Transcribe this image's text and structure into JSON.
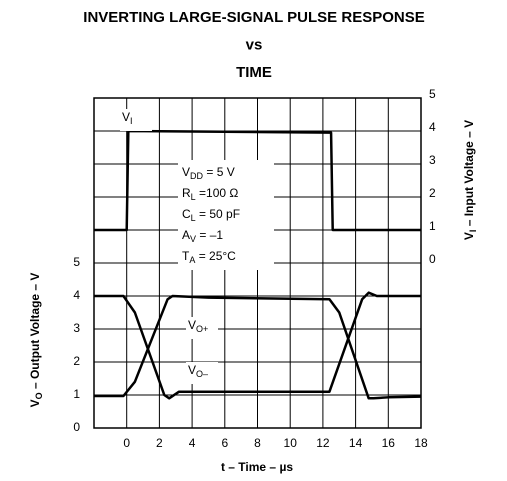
{
  "chart_data": {
    "type": "line",
    "title": [
      "INVERTING LARGE-SIGNAL PULSE RESPONSE",
      "vs",
      "TIME"
    ],
    "x_label": "t – Time – µs",
    "y_label": {
      "base": "V",
      "sub": "O",
      "rest": " – Output Voltage – V"
    },
    "y2_label": {
      "base": "V",
      "sub": "I",
      "rest": " – Input Voltage – V"
    },
    "xlim": [
      -2,
      18
    ],
    "xticks": [
      0,
      2,
      4,
      6,
      8,
      10,
      12,
      14,
      16,
      18
    ],
    "ylim": [
      0,
      10
    ],
    "yticks": [
      0,
      1,
      2,
      3,
      4,
      5
    ],
    "y2lim": [
      -5,
      5
    ],
    "y2ticks": [
      0,
      1,
      2,
      3,
      4,
      5
    ],
    "grid": true,
    "series": [
      {
        "label": {
          "base": "V",
          "sub": "I"
        },
        "axis": "y2",
        "color": "#000000",
        "x": [
          -2,
          0,
          0.1,
          12.5,
          12.6,
          18
        ],
        "values": [
          1,
          1,
          4,
          3.95,
          1,
          1
        ]
      },
      {
        "label": {
          "base": "V",
          "sub": "O+"
        },
        "color": "#000000",
        "x": [
          -2,
          -0.2,
          0.5,
          2.5,
          2.8,
          5,
          12.4,
          13,
          14.8,
          15.1,
          16,
          18
        ],
        "values": [
          0.97,
          0.97,
          1.4,
          3.9,
          4.0,
          3.95,
          3.9,
          3.5,
          0.9,
          0.9,
          0.93,
          0.95
        ]
      },
      {
        "label": {
          "base": "V",
          "sub": "O–"
        },
        "color": "#000000",
        "x": [
          -2,
          -0.2,
          0.5,
          2.3,
          2.6,
          3.2,
          12.4,
          14.4,
          14.8,
          15.3,
          18
        ],
        "values": [
          4,
          4,
          3.5,
          1.0,
          0.9,
          1.1,
          1.1,
          3.9,
          4.1,
          4.0,
          4.0
        ]
      }
    ],
    "conditions": [
      {
        "base": "V",
        "sub": "DD",
        "rest": " = 5 V"
      },
      {
        "base": "R",
        "sub": "L",
        "rest": " =100 Ω"
      },
      {
        "base": "C",
        "sub": "L",
        "rest": " = 50 pF"
      },
      {
        "base": "A",
        "sub": "V",
        "rest": " = –1"
      },
      {
        "base": "T",
        "sub": "A",
        "rest": " = 25°C"
      }
    ]
  }
}
